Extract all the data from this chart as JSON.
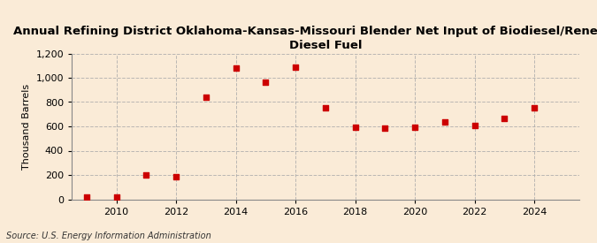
{
  "title": "Annual Refining District Oklahoma-Kansas-Missouri Blender Net Input of Biodiesel/Renewable\nDiesel Fuel",
  "ylabel": "Thousand Barrels",
  "source": "Source: U.S. Energy Information Administration",
  "background_color": "#faebd7",
  "plot_background_color": "#faebd7",
  "marker_color": "#cc0000",
  "marker": "s",
  "marker_size": 4,
  "years": [
    2009,
    2010,
    2011,
    2012,
    2013,
    2014,
    2015,
    2016,
    2017,
    2018,
    2019,
    2020,
    2021,
    2022,
    2023,
    2024
  ],
  "values": [
    18,
    18,
    200,
    183,
    840,
    1080,
    963,
    1085,
    750,
    590,
    588,
    590,
    635,
    610,
    665,
    750
  ],
  "xlim": [
    2008.5,
    2025.5
  ],
  "ylim": [
    0,
    1200
  ],
  "yticks": [
    0,
    200,
    400,
    600,
    800,
    1000,
    1200
  ],
  "xticks": [
    2010,
    2012,
    2014,
    2016,
    2018,
    2020,
    2022,
    2024
  ],
  "grid_color": "#aaaaaa",
  "grid_style": "--",
  "grid_alpha": 0.8,
  "title_fontsize": 9.5,
  "axis_label_fontsize": 8,
  "tick_fontsize": 8,
  "source_fontsize": 7
}
